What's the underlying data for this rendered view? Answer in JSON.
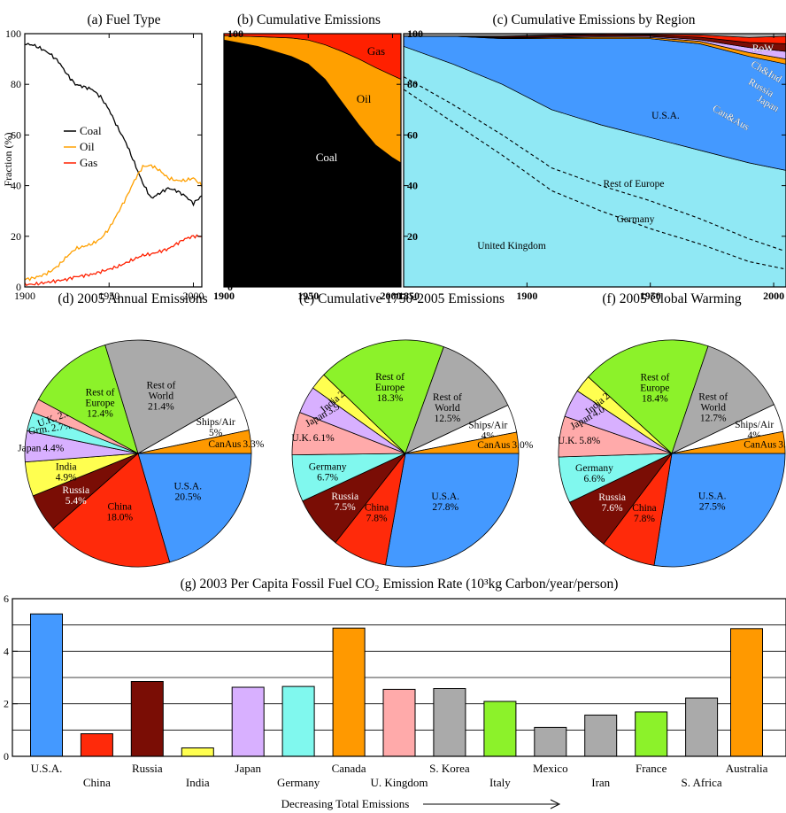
{
  "colors": {
    "coal": "#000000",
    "oil": "#ffa000",
    "gas": "#ff2000",
    "usa": "#4499ff",
    "china": "#ff2a0a",
    "russia": "#7a0d05",
    "india": "#ffff50",
    "japan": "#d8b0ff",
    "germany": "#80f8ee",
    "uk": "#ffaaaa",
    "canaus": "#ff9900",
    "ships": "#ffffff",
    "row": "#aaaaaa",
    "roe": "#8cf22a",
    "ukregion": "#90e8f4",
    "grey": "#aaaaaa"
  },
  "chart_data": [
    {
      "id": "a",
      "type": "line",
      "title": "(a) Fuel Type",
      "ylabel": "Fraction (%)",
      "xlim": [
        1900,
        2005
      ],
      "ylim": [
        0,
        100
      ],
      "xticks": [
        "1900",
        "1950",
        "2000"
      ],
      "yticks": [
        "0",
        "20",
        "40",
        "60",
        "80",
        "100"
      ],
      "legend": [
        "Coal",
        "Oil",
        "Gas"
      ],
      "legend_position": "center-left",
      "x": [
        1900,
        1905,
        1910,
        1915,
        1920,
        1925,
        1930,
        1935,
        1940,
        1945,
        1950,
        1955,
        1960,
        1965,
        1970,
        1975,
        1980,
        1985,
        1990,
        1995,
        2000,
        2005
      ],
      "series": [
        {
          "name": "Coal",
          "color_key": "coal",
          "values": [
            96,
            95.5,
            94,
            92,
            89,
            84,
            80,
            79,
            78,
            75,
            70,
            63,
            57,
            49,
            41,
            35,
            37,
            39,
            38,
            36,
            33,
            36
          ]
        },
        {
          "name": "Oil",
          "color_key": "oil",
          "values": [
            3,
            3.5,
            4.5,
            6,
            8.5,
            12,
            15,
            16,
            17,
            19,
            23,
            29,
            35,
            42,
            47.5,
            48,
            46,
            43,
            42,
            42,
            43,
            40
          ]
        },
        {
          "name": "Gas",
          "color_key": "gas",
          "values": [
            1,
            1,
            1.5,
            2,
            2.5,
            3,
            4,
            4.5,
            5,
            6,
            7,
            8,
            9.5,
            11,
            12.5,
            13,
            14,
            15,
            17,
            19,
            20,
            20
          ]
        }
      ]
    },
    {
      "id": "b",
      "type": "area",
      "stacked": true,
      "title": "(b) Cumulative Emissions",
      "xlim": [
        1900,
        2005
      ],
      "ylim": [
        0,
        100
      ],
      "xticks": [
        "1900",
        "1950",
        "2000"
      ],
      "yticks": [
        "0",
        "20",
        "40",
        "60",
        "80",
        "100"
      ],
      "x": [
        1900,
        1920,
        1940,
        1950,
        1960,
        1970,
        1980,
        1990,
        2000,
        2005
      ],
      "series": [
        {
          "name": "Coal",
          "color_key": "coal",
          "values": [
            97.5,
            95,
            91,
            88,
            82,
            73,
            64,
            56,
            51,
            49
          ]
        },
        {
          "name": "Oil",
          "color_key": "oil",
          "values": [
            1.7,
            3.8,
            7.3,
            9.5,
            13.6,
            20,
            26,
            30.6,
            32.5,
            33
          ]
        },
        {
          "name": "Gas",
          "color_key": "gas",
          "values": [
            0.8,
            1.2,
            1.7,
            2.5,
            4.4,
            7,
            10,
            13.4,
            16.5,
            18
          ]
        }
      ],
      "labels": [
        "Coal",
        "Oil",
        "Gas"
      ]
    },
    {
      "id": "c",
      "type": "area",
      "stacked": true,
      "title": "(c) Cumulative Emissions by Region",
      "xlim": [
        1850,
        2005
      ],
      "ylim": [
        0,
        100
      ],
      "xticks": [
        "1850",
        "1900",
        "1950",
        "2000"
      ],
      "yticks": [
        "20",
        "40",
        "60",
        "80",
        "100"
      ],
      "x": [
        1850,
        1870,
        1890,
        1910,
        1930,
        1950,
        1970,
        1990,
        2005
      ],
      "series": [
        {
          "name": "United Kingdom",
          "color_key": "ukregion",
          "values": [
            95,
            88,
            80,
            70,
            64,
            59,
            54,
            49,
            46
          ]
        },
        {
          "name": "U.S.A.",
          "color_key": "usa",
          "values": [
            4,
            11,
            18,
            28,
            34,
            39,
            42,
            42,
            42
          ]
        },
        {
          "name": "Can&Aus",
          "color_key": "canaus",
          "values": [
            0,
            0,
            0.2,
            0.4,
            0.6,
            0.5,
            1,
            1.5,
            2
          ]
        },
        {
          "name": "Japan",
          "color_key": "japan",
          "values": [
            0,
            0,
            0.2,
            0.3,
            0.4,
            0.4,
            0.6,
            2,
            3
          ]
        },
        {
          "name": "Russia",
          "color_key": "russia",
          "values": [
            0,
            0,
            0.4,
            0.6,
            0.7,
            0.5,
            1,
            2,
            3
          ]
        },
        {
          "name": "Ch&Ind",
          "color_key": "gas",
          "values": [
            0,
            0,
            0.2,
            0.2,
            0.3,
            0.3,
            0.9,
            2,
            3
          ]
        },
        {
          "name": "RoW",
          "color_key": "row",
          "values": [
            1,
            1,
            1,
            0.5,
            0,
            0.3,
            0.5,
            1.5,
            1
          ]
        }
      ],
      "dashed_boundaries": [
        {
          "name": "Germany",
          "values": [
            78,
            65,
            52,
            38,
            30,
            23,
            17,
            10,
            7
          ]
        },
        {
          "name": "Rest of Europe",
          "values": [
            83,
            72,
            60,
            47,
            40,
            34,
            27,
            19,
            14
          ]
        }
      ],
      "labels": [
        "RoW",
        "Ch&Ind",
        "Russia",
        "Japan",
        "Can&Aus",
        "U.S.A.",
        "Rest of Europe",
        "Germany",
        "United Kingdom"
      ]
    },
    {
      "id": "d",
      "type": "pie",
      "title": "(d) 2005 Annual Emissions",
      "slices": [
        {
          "label": "U.S.A.",
          "value_text": "20.5%",
          "value": 20.5,
          "color_key": "usa"
        },
        {
          "label": "China",
          "value_text": "18.0%",
          "value": 18.0,
          "color_key": "china"
        },
        {
          "label": "Russia",
          "value_text": "5.4%",
          "value": 5.4,
          "color_key": "russia"
        },
        {
          "label": "India",
          "value_text": "4.9%",
          "value": 4.9,
          "color_key": "india"
        },
        {
          "label": "Japan",
          "value_text": "4.4%",
          "value": 4.4,
          "color_key": "japan"
        },
        {
          "label": "Grm.",
          "value_text": "2.7%",
          "value": 2.7,
          "color_key": "germany"
        },
        {
          "label": "U.K.",
          "value_text": "2.0%",
          "value": 2.0,
          "color_key": "uk"
        },
        {
          "label": "Rest of Europe",
          "value_text": "12.4%",
          "value": 12.4,
          "color_key": "roe"
        },
        {
          "label": "Rest of World",
          "value_text": "21.4%",
          "value": 21.4,
          "color_key": "row"
        },
        {
          "label": "Ships/Air",
          "value_text": "5%",
          "value": 5.0,
          "color_key": "ships"
        },
        {
          "label": "CanAus",
          "value_text": "3.3%",
          "value": 3.3,
          "color_key": "canaus"
        }
      ]
    },
    {
      "id": "e",
      "type": "pie",
      "title": "(e) Cumulative 1750-2005 Emissions",
      "slices": [
        {
          "label": "U.S.A.",
          "value_text": "27.8%",
          "value": 27.8,
          "color_key": "usa"
        },
        {
          "label": "China",
          "value_text": "7.8%",
          "value": 7.8,
          "color_key": "china"
        },
        {
          "label": "Russia",
          "value_text": "7.5%",
          "value": 7.5,
          "color_key": "russia"
        },
        {
          "label": "Germany",
          "value_text": "6.7%",
          "value": 6.7,
          "color_key": "germany"
        },
        {
          "label": "U.K.",
          "value_text": "6.1%",
          "value": 6.1,
          "color_key": "uk"
        },
        {
          "label": "Japan",
          "value_text": "3.9%",
          "value": 3.9,
          "color_key": "japan"
        },
        {
          "label": "India",
          "value_text": "2.4%",
          "value": 2.4,
          "color_key": "india"
        },
        {
          "label": "Rest of Europe",
          "value_text": "18.3%",
          "value": 18.3,
          "color_key": "roe"
        },
        {
          "label": "Rest of World",
          "value_text": "12.5%",
          "value": 12.5,
          "color_key": "row"
        },
        {
          "label": "Ships/Air",
          "value_text": "4%",
          "value": 4.0,
          "color_key": "ships"
        },
        {
          "label": "CanAus",
          "value_text": "3.0%",
          "value": 3.0,
          "color_key": "canaus"
        }
      ]
    },
    {
      "id": "f",
      "type": "pie",
      "title": "(f) 2005 Global Warming",
      "slices": [
        {
          "label": "U.S.A.",
          "value_text": "27.5%",
          "value": 27.5,
          "color_key": "usa"
        },
        {
          "label": "China",
          "value_text": "7.8%",
          "value": 7.8,
          "color_key": "china"
        },
        {
          "label": "Russia",
          "value_text": "7.6%",
          "value": 7.6,
          "color_key": "russia"
        },
        {
          "label": "Germany",
          "value_text": "6.6%",
          "value": 6.6,
          "color_key": "germany"
        },
        {
          "label": "U.K.",
          "value_text": "5.8%",
          "value": 5.8,
          "color_key": "uk"
        },
        {
          "label": "Japan",
          "value_text": "4.0%",
          "value": 4.0,
          "color_key": "japan"
        },
        {
          "label": "India",
          "value_text": "2.5%",
          "value": 2.5,
          "color_key": "india"
        },
        {
          "label": "Rest of Europe",
          "value_text": "18.4%",
          "value": 18.4,
          "color_key": "roe"
        },
        {
          "label": "Rest of World",
          "value_text": "12.7%",
          "value": 12.7,
          "color_key": "row"
        },
        {
          "label": "Ships/Air",
          "value_text": "4%",
          "value": 4.0,
          "color_key": "ships"
        },
        {
          "label": "CanAus",
          "value_text": "3.1%",
          "value": 3.1,
          "color_key": "canaus"
        }
      ]
    },
    {
      "id": "g",
      "type": "bar",
      "title": "(g)  2003 Per Capita Fossil Fuel CO₂ Emission Rate (10³kg Carbon/year/person)",
      "xlabel": "Decreasing Total Emissions",
      "ylim": [
        0,
        6
      ],
      "yticks": [
        "0",
        "2",
        "4",
        "6"
      ],
      "categories": [
        "U.S.A.",
        "China",
        "Russia",
        "India",
        "Japan",
        "Germany",
        "Canada",
        "U. Kingdom",
        "S. Korea",
        "Italy",
        "Mexico",
        "Iran",
        "France",
        "S. Africa",
        "Australia"
      ],
      "values": [
        5.42,
        0.86,
        2.85,
        0.32,
        2.63,
        2.66,
        4.88,
        2.55,
        2.58,
        2.09,
        1.1,
        1.57,
        1.69,
        2.22,
        4.86
      ],
      "color_keys": [
        "usa",
        "china",
        "russia",
        "india",
        "japan",
        "germany",
        "canaus",
        "uk",
        "grey",
        "roe",
        "grey",
        "grey",
        "roe",
        "grey",
        "canaus"
      ]
    }
  ]
}
